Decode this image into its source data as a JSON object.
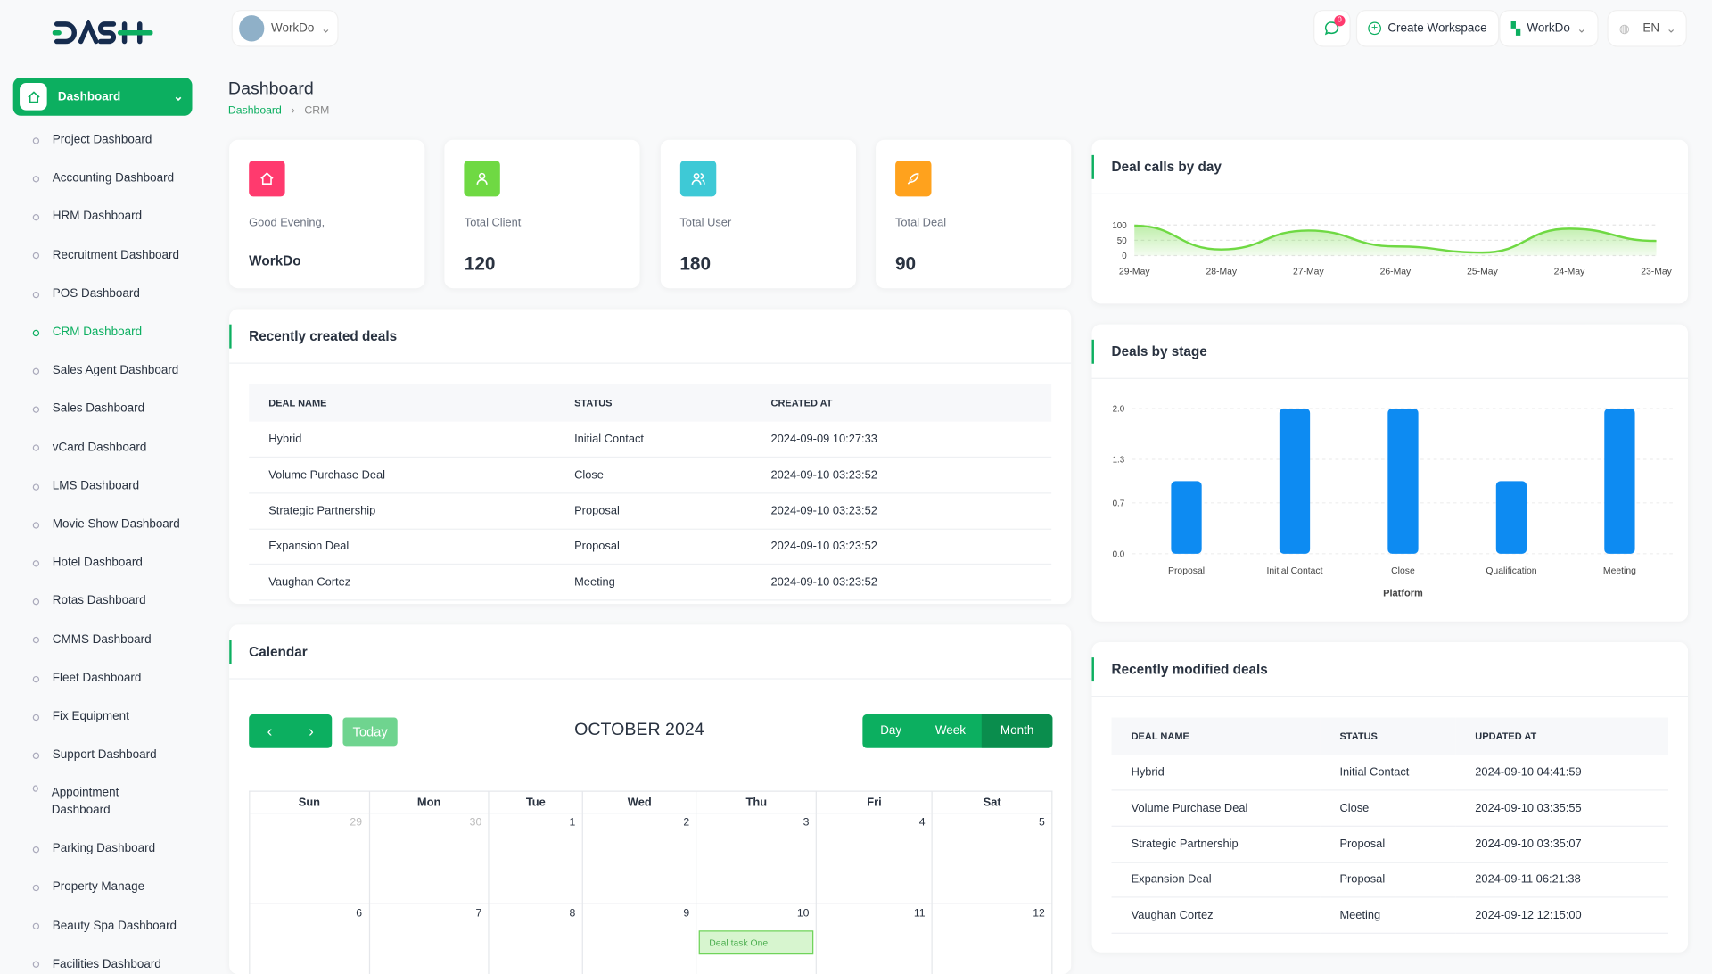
{
  "brand": {
    "logo_text": "DASH",
    "accent": "#0caf60"
  },
  "header": {
    "workspace": "WorkDo",
    "notif_count": "0",
    "create_workspace": "Create Workspace",
    "user_menu": "WorkDo",
    "language": "EN"
  },
  "sidebar": {
    "active": "Dashboard",
    "items": [
      "Project Dashboard",
      "Accounting Dashboard",
      "HRM Dashboard",
      "Recruitment Dashboard",
      "POS Dashboard",
      "CRM Dashboard",
      "Sales Agent Dashboard",
      "Sales Dashboard",
      "vCard Dashboard",
      "LMS Dashboard",
      "Movie Show Dashboard",
      "Hotel Dashboard",
      "Rotas Dashboard",
      "CMMS Dashboard",
      "Fleet Dashboard",
      "Fix Equipment",
      "Support Dashboard",
      "Appointment Dashboard",
      "Parking Dashboard",
      "Property Manage",
      "Beauty Spa Dashboard",
      "Facilities Dashboard"
    ],
    "current": "CRM Dashboard"
  },
  "page": {
    "title": "Dashboard",
    "breadcrumb": [
      "Dashboard",
      "CRM"
    ]
  },
  "stats": [
    {
      "label": "Good Evening,",
      "value": "WorkDo",
      "icon": "home-icon",
      "color": "#ff3a6e"
    },
    {
      "label": "Total Client",
      "value": "120",
      "icon": "user-icon",
      "color": "#6fd943"
    },
    {
      "label": "Total User",
      "value": "180",
      "icon": "users-icon",
      "color": "#3ec9d6"
    },
    {
      "label": "Total Deal",
      "value": "90",
      "icon": "rocket-icon",
      "color": "#ffa21d"
    }
  ],
  "recent_deals": {
    "title": "Recently created deals",
    "columns": [
      "DEAL NAME",
      "STATUS",
      "CREATED AT"
    ],
    "rows": [
      [
        "Hybrid",
        "Initial Contact",
        "2024-09-09 10:27:33"
      ],
      [
        "Volume Purchase Deal",
        "Close",
        "2024-09-10 03:23:52"
      ],
      [
        "Strategic Partnership",
        "Proposal",
        "2024-09-10 03:23:52"
      ],
      [
        "Expansion Deal",
        "Proposal",
        "2024-09-10 03:23:52"
      ],
      [
        "Vaughan Cortez",
        "Meeting",
        "2024-09-10 03:23:52"
      ]
    ]
  },
  "calendar": {
    "title": "Calendar",
    "today": "Today",
    "month": "OCTOBER 2024",
    "views": [
      "Day",
      "Week",
      "Month"
    ],
    "active_view": "Month",
    "weekdays": [
      "Sun",
      "Mon",
      "Tue",
      "Wed",
      "Thu",
      "Fri",
      "Sat"
    ],
    "weeks": [
      [
        {
          "d": "29",
          "m": true
        },
        {
          "d": "30",
          "m": true
        },
        {
          "d": "1"
        },
        {
          "d": "2"
        },
        {
          "d": "3"
        },
        {
          "d": "4"
        },
        {
          "d": "5"
        }
      ],
      [
        {
          "d": "6"
        },
        {
          "d": "7"
        },
        {
          "d": "8"
        },
        {
          "d": "9"
        },
        {
          "d": "10",
          "event": "Deal task One"
        },
        {
          "d": "11"
        },
        {
          "d": "12"
        }
      ]
    ]
  },
  "modified_deals": {
    "title": "Recently modified deals",
    "columns": [
      "DEAL NAME",
      "STATUS",
      "UPDATED AT"
    ],
    "rows": [
      [
        "Hybrid",
        "Initial Contact",
        "2024-09-10 04:41:59"
      ],
      [
        "Volume Purchase Deal",
        "Close",
        "2024-09-10 03:35:55"
      ],
      [
        "Strategic Partnership",
        "Proposal",
        "2024-09-10 03:35:07"
      ],
      [
        "Expansion Deal",
        "Proposal",
        "2024-09-11 06:21:38"
      ],
      [
        "Vaughan Cortez",
        "Meeting",
        "2024-09-12 12:15:00"
      ]
    ]
  },
  "chart_data": [
    {
      "type": "area",
      "title": "Deal calls by day",
      "categories": [
        "29-May",
        "28-May",
        "27-May",
        "26-May",
        "25-May",
        "24-May",
        "23-May"
      ],
      "values": [
        98,
        20,
        82,
        30,
        10,
        88,
        48
      ],
      "yticks": [
        0,
        50,
        100
      ],
      "ylim": [
        0,
        100
      ],
      "color": "#6fd943",
      "grid": true
    },
    {
      "type": "bar",
      "title": "Deals by stage",
      "categories": [
        "Proposal",
        "Initial Contact",
        "Close",
        "Qualification",
        "Meeting"
      ],
      "values": [
        1,
        2,
        2,
        1,
        2
      ],
      "yticks": [
        "0.0",
        "0.7",
        "1.3",
        "2.0"
      ],
      "ylim": [
        0,
        2
      ],
      "xlabel": "Platform",
      "color": "#0d8bf2",
      "grid": true
    }
  ]
}
